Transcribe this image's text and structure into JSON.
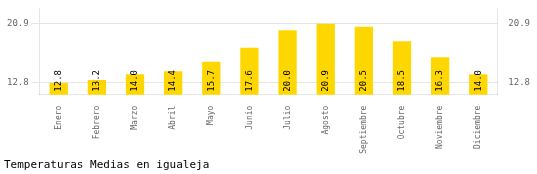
{
  "chart_data": {
    "type": "bar",
    "title": "Temperaturas Medias en igualeja",
    "categories": [
      "Enero",
      "Febrero",
      "Marzo",
      "Abril",
      "Mayo",
      "Junio",
      "Julio",
      "Agosto",
      "Septiembre",
      "Octubre",
      "Noviembre",
      "Diciembre"
    ],
    "values": [
      12.8,
      13.2,
      14.0,
      14.4,
      15.7,
      17.6,
      20.0,
      20.9,
      20.5,
      18.5,
      16.3,
      14.0
    ],
    "value_labels": [
      "12.8",
      "13.2",
      "14.0",
      "14.4",
      "15.7",
      "17.6",
      "20.0",
      "20.9",
      "20.5",
      "18.5",
      "16.3",
      "14.0"
    ],
    "color": "#FFD700",
    "ylim": [
      11.2,
      23.0
    ],
    "yticks": [
      12.8,
      20.9
    ],
    "y2lim": [
      11.2,
      23.0
    ],
    "y2ticks": [
      12.8,
      20.9
    ],
    "grid": true,
    "data_labels": true
  }
}
